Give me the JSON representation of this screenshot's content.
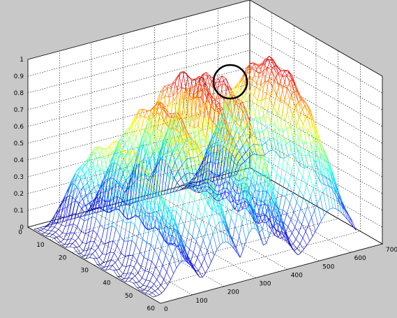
{
  "figure": {
    "background": "#c8c8c8",
    "axes_background": "#ffffff"
  },
  "chart_data": {
    "type": "surface-mesh",
    "title": "",
    "xlabel": "",
    "ylabel": "",
    "zlabel": "",
    "x_axis": {
      "range": [
        0,
        60
      ],
      "ticks": [
        "0",
        "10",
        "20",
        "30",
        "40",
        "50",
        "60"
      ]
    },
    "y_axis": {
      "range": [
        0,
        700
      ],
      "ticks": [
        "0",
        "100",
        "200",
        "300",
        "400",
        "500",
        "600",
        "700"
      ]
    },
    "z_axis": {
      "range": [
        0,
        1
      ],
      "ticks": [
        "0",
        "0.1",
        "0.2",
        "0.3",
        "0.4",
        "0.5",
        "0.6",
        "0.7",
        "0.8",
        "0.9",
        "1"
      ]
    },
    "grid": true,
    "colormap": "jet",
    "ridges": [
      {
        "y_center": 100,
        "peak_z": 0.65,
        "width": 45
      },
      {
        "y_center": 230,
        "peak_z": 0.82,
        "width": 55
      },
      {
        "y_center": 320,
        "peak_z": 0.97,
        "width": 40
      },
      {
        "y_center": 395,
        "peak_z": 0.92,
        "width": 45
      },
      {
        "y_center": 570,
        "peak_z": 0.92,
        "width": 70
      }
    ],
    "annotations": [
      {
        "type": "circle",
        "note": "circled peak",
        "y": 400,
        "z": 0.9
      }
    ]
  }
}
